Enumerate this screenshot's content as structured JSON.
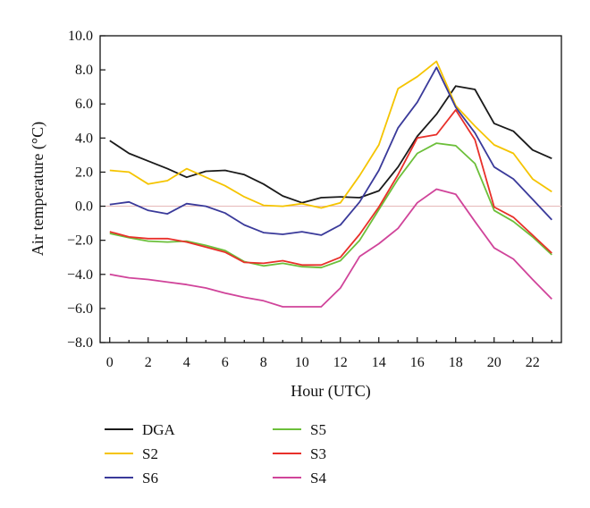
{
  "chart_data": {
    "type": "line",
    "xlabel": "Hour (UTC)",
    "ylabel": "Air temperature (°C)",
    "xlim": [
      -0.5,
      23.5
    ],
    "ylim": [
      -8.0,
      10.0
    ],
    "x_ticks": [
      0,
      2,
      4,
      6,
      8,
      10,
      12,
      14,
      16,
      18,
      20,
      22
    ],
    "y_ticks": [
      -8.0,
      -6.0,
      -4.0,
      -2.0,
      0.0,
      2.0,
      4.0,
      6.0,
      8.0,
      10.0
    ],
    "x_tick_labels": [
      "0",
      "2",
      "4",
      "6",
      "8",
      "10",
      "12",
      "14",
      "16",
      "18",
      "20",
      "22"
    ],
    "y_tick_labels": [
      "−8.0",
      "−6.0",
      "−4.0",
      "−2.0",
      "0.0",
      "2.0",
      "4.0",
      "6.0",
      "8.0",
      "10.0"
    ],
    "zero_line": true,
    "grid": false,
    "legend_position": "bottom",
    "x": [
      0,
      1,
      2,
      3,
      4,
      5,
      6,
      7,
      8,
      9,
      10,
      11,
      12,
      13,
      14,
      15,
      16,
      17,
      18,
      19,
      20,
      21,
      22,
      23
    ],
    "series": [
      {
        "name": "DGA",
        "color": "#1a1a1a",
        "values": [
          3.85,
          3.1,
          2.65,
          2.2,
          1.7,
          2.05,
          2.1,
          1.85,
          1.3,
          0.6,
          0.2,
          0.5,
          0.55,
          0.5,
          0.9,
          2.3,
          4.1,
          5.4,
          7.05,
          6.85,
          4.85,
          4.4,
          3.3,
          2.8
        ]
      },
      {
        "name": "S2",
        "color": "#f5c400",
        "values": [
          2.1,
          2.0,
          1.3,
          1.5,
          2.2,
          1.7,
          1.2,
          0.55,
          0.05,
          0.0,
          0.15,
          -0.1,
          0.2,
          1.8,
          3.6,
          6.9,
          7.6,
          8.5,
          5.9,
          4.7,
          3.6,
          3.1,
          1.6,
          0.85
        ]
      },
      {
        "name": "S6",
        "color": "#3a3a9a",
        "values": [
          0.1,
          0.25,
          -0.25,
          -0.45,
          0.15,
          0.0,
          -0.4,
          -1.1,
          -1.55,
          -1.65,
          -1.5,
          -1.7,
          -1.1,
          0.25,
          2.1,
          4.6,
          6.1,
          8.15,
          5.8,
          4.3,
          2.3,
          1.6,
          0.4,
          -0.8
        ]
      },
      {
        "name": "S5",
        "color": "#6cbf3a",
        "values": [
          -1.6,
          -1.85,
          -2.05,
          -2.1,
          -2.05,
          -2.3,
          -2.6,
          -3.25,
          -3.5,
          -3.35,
          -3.55,
          -3.6,
          -3.2,
          -2.0,
          -0.2,
          1.6,
          3.1,
          3.7,
          3.55,
          2.5,
          -0.25,
          -0.9,
          -1.8,
          -2.85
        ]
      },
      {
        "name": "S3",
        "color": "#e8302a",
        "values": [
          -1.5,
          -1.8,
          -1.9,
          -1.9,
          -2.1,
          -2.4,
          -2.7,
          -3.3,
          -3.35,
          -3.2,
          -3.45,
          -3.45,
          -3.0,
          -1.65,
          -0.05,
          1.85,
          4.0,
          4.2,
          5.65,
          3.9,
          -0.05,
          -0.65,
          -1.7,
          -2.75
        ]
      },
      {
        "name": "S4",
        "color": "#d0449a",
        "values": [
          -4.0,
          -4.2,
          -4.3,
          -4.45,
          -4.6,
          -4.8,
          -5.1,
          -5.35,
          -5.55,
          -5.9,
          -5.9,
          -5.9,
          -4.8,
          -2.95,
          -2.2,
          -1.3,
          0.2,
          1.0,
          0.7,
          -0.9,
          -2.45,
          -3.1,
          -4.3,
          -5.45
        ]
      }
    ]
  }
}
